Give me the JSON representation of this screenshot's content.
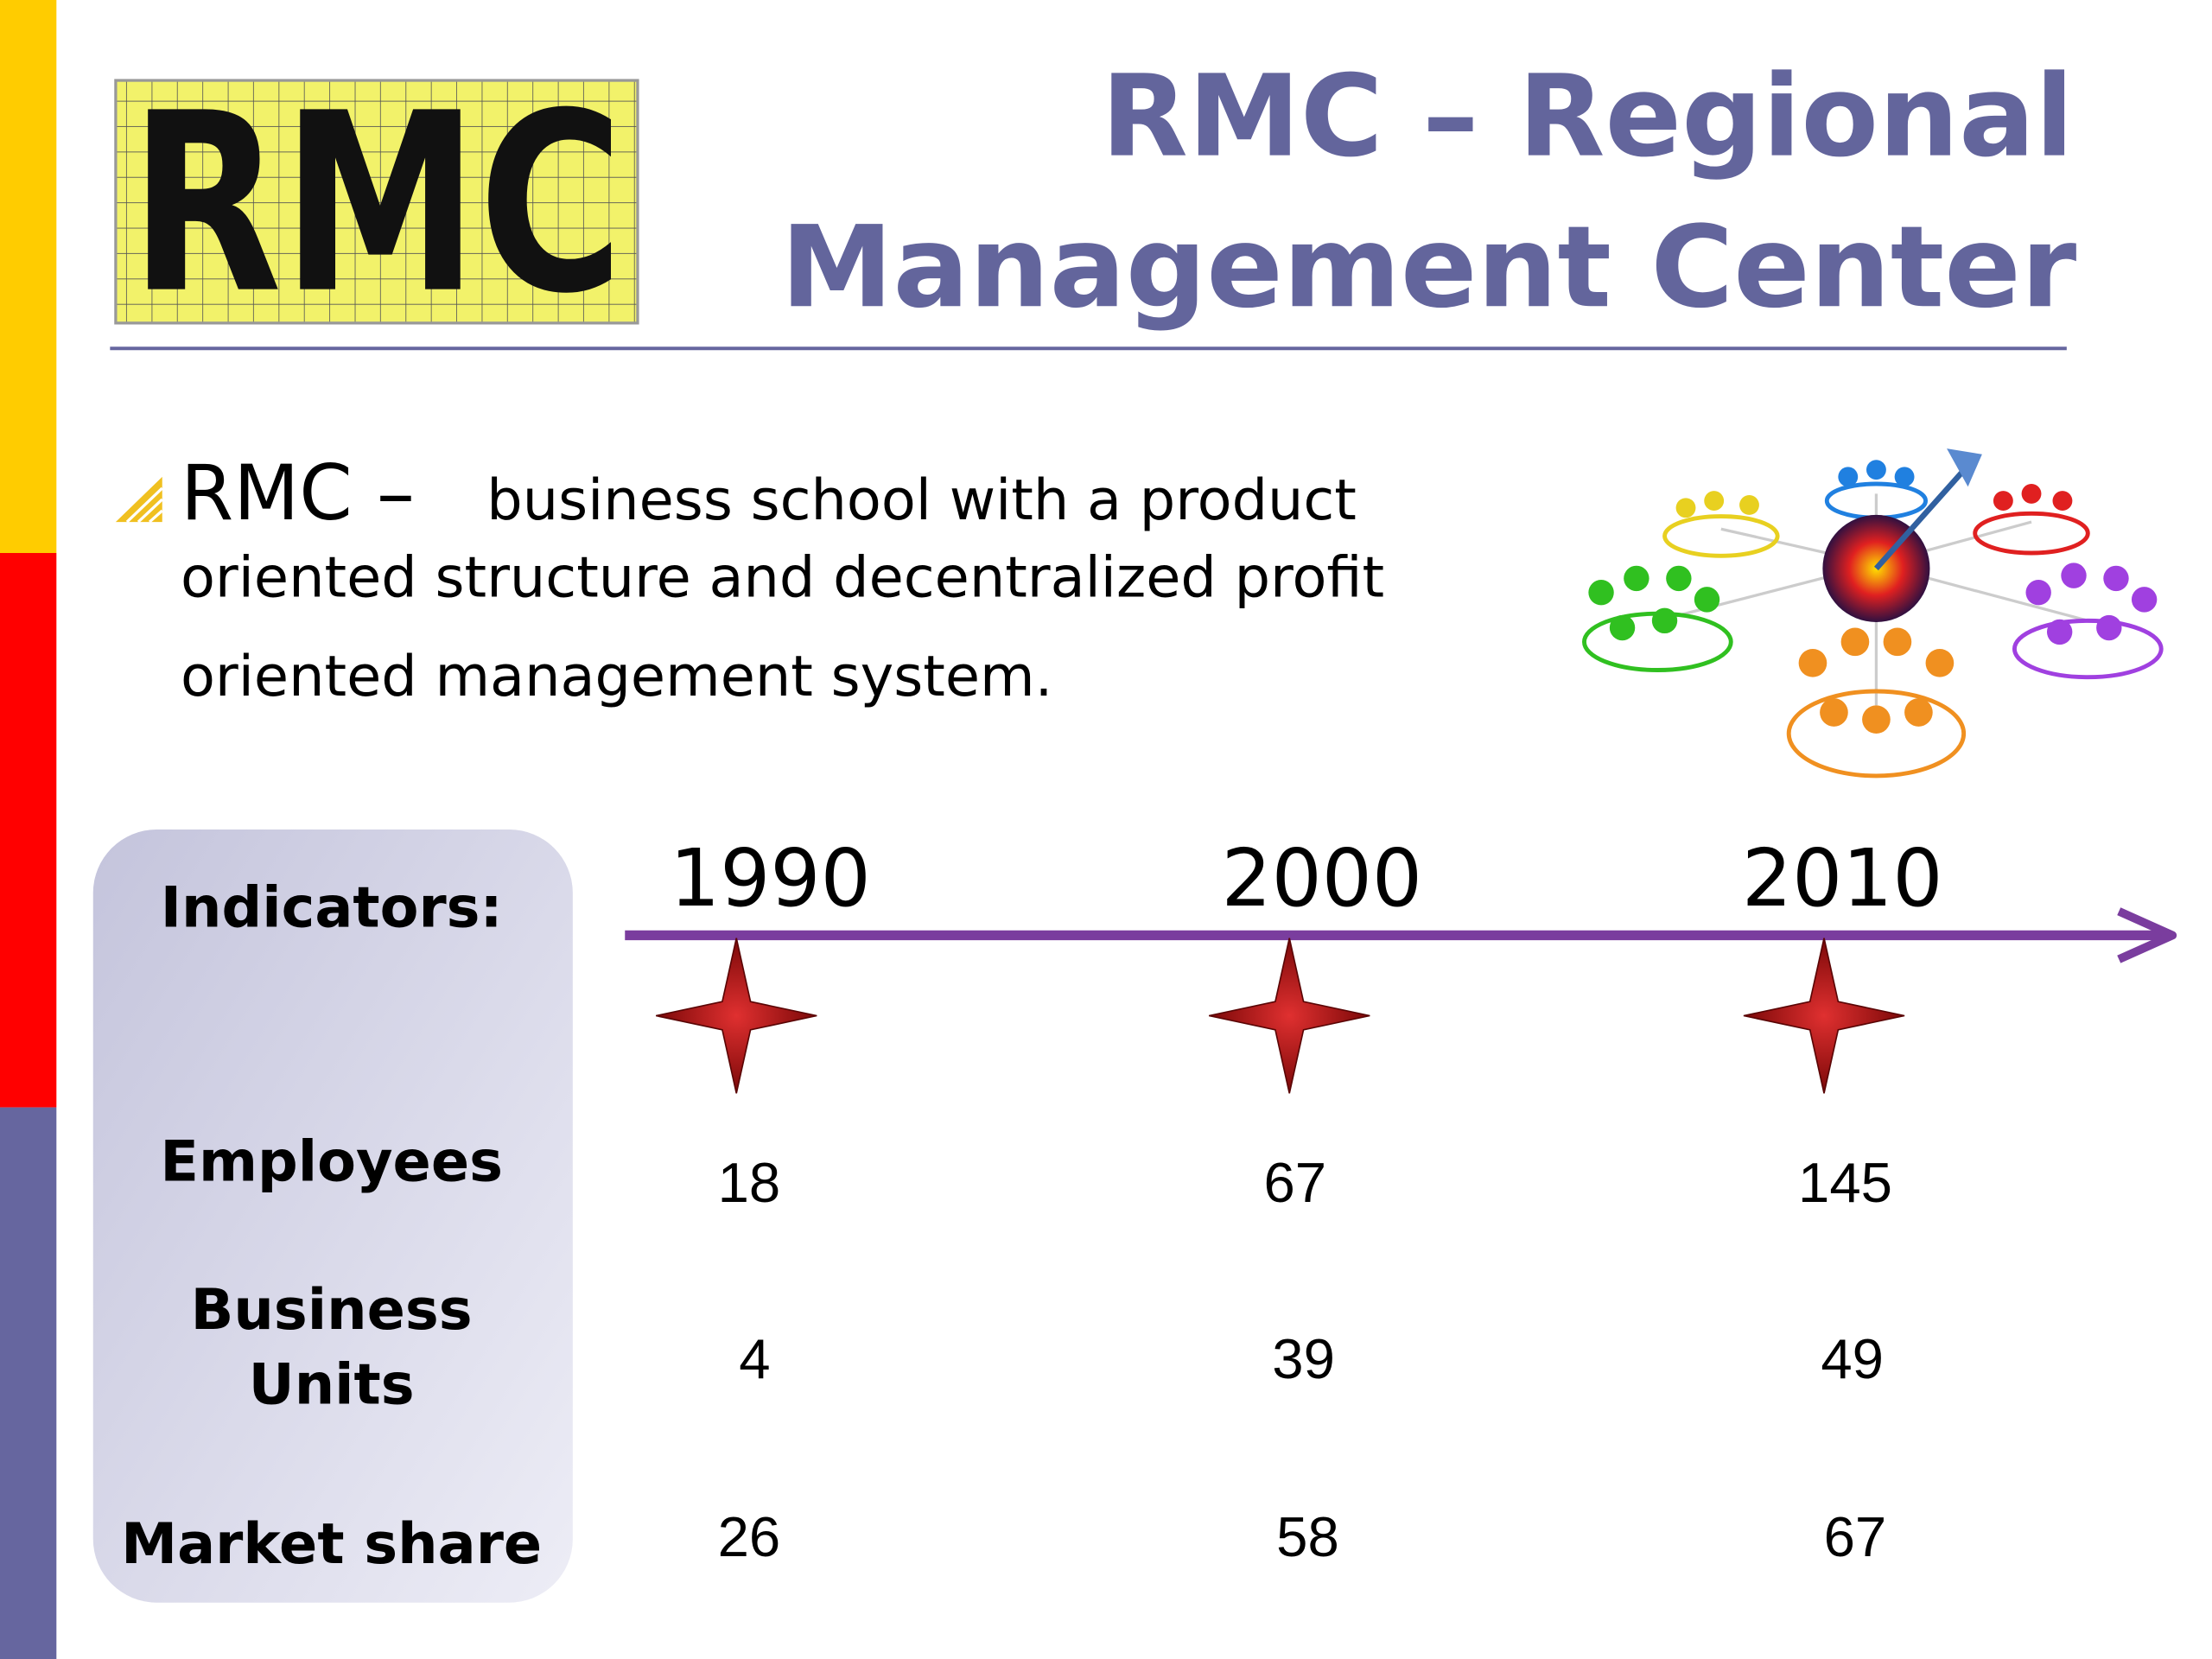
{
  "header": {
    "logo": "RMC",
    "title_lines": [
      "RMC – Regional",
      "Management Center"
    ]
  },
  "bullet": {
    "lead": "RMC –",
    "text_lines": [
      "business school with a product",
      "oriented structure and decentralized profit",
      "oriented management system."
    ]
  },
  "timeline": {
    "indicators_label": "Indicators:",
    "years": [
      1990,
      2000,
      2010
    ],
    "rows": [
      {
        "label_lines": [
          "Employees"
        ],
        "values": [
          18,
          67,
          145
        ]
      },
      {
        "label_lines": [
          "Business",
          "Units"
        ],
        "values": [
          4,
          39,
          49
        ]
      },
      {
        "label_lines": [
          "Market share"
        ],
        "values": [
          26,
          58,
          67
        ]
      }
    ]
  }
}
